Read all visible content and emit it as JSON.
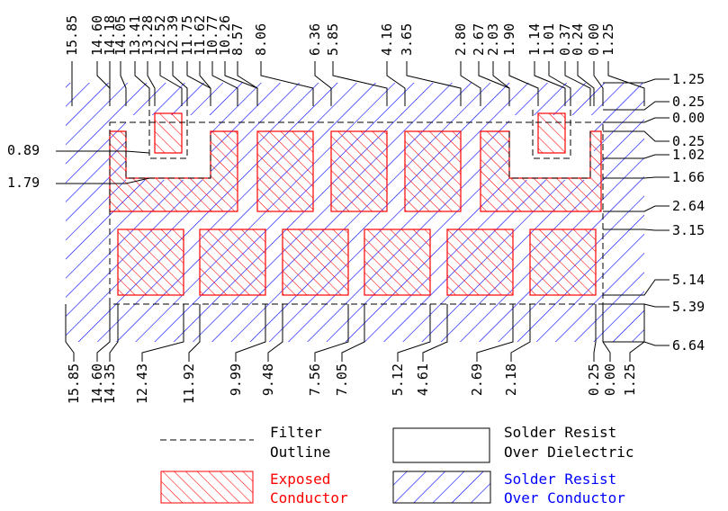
{
  "colors": {
    "exposed_conductor": "#ff0000",
    "solder_resist_over_conductor": "#0000ff",
    "outline": "#000000",
    "background": "#ffffff"
  },
  "top_labels": [
    "15.85",
    "14.60",
    "14.18",
    "14.05",
    "13.41",
    "13.28",
    "12.52",
    "12.39",
    "11.75",
    "11.62",
    "10.77",
    "10.26",
    "8.57",
    "8.06",
    "6.36",
    "5.85",
    "4.16",
    "3.65",
    "2.80",
    "2.67",
    "2.03",
    "1.90",
    "1.14",
    "1.01",
    "0.37",
    "0.24",
    "0.00",
    "1.25"
  ],
  "bottom_labels": [
    "15.85",
    "14.60",
    "14.35",
    "12.43",
    "11.92",
    "9.99",
    "9.48",
    "7.56",
    "7.05",
    "5.12",
    "4.61",
    "2.69",
    "2.18",
    "0.25",
    "0.00",
    "1.25"
  ],
  "right_labels": [
    "1.25",
    "0.25",
    "0.00",
    "0.25",
    "1.02",
    "1.66",
    "2.64",
    "3.15",
    "5.14",
    "5.39",
    "6.64"
  ],
  "left_labels": [
    "0.89",
    "1.79"
  ],
  "legend": {
    "filter_outline": [
      "Filter",
      "Outline"
    ],
    "solder_resist_over_dielectric": [
      "Solder Resist",
      "Over Dielectric"
    ],
    "exposed_conductor": [
      "Exposed",
      "Conductor"
    ],
    "solder_resist_over_conductor": [
      "Solder Resist",
      "Over Conductor"
    ]
  }
}
